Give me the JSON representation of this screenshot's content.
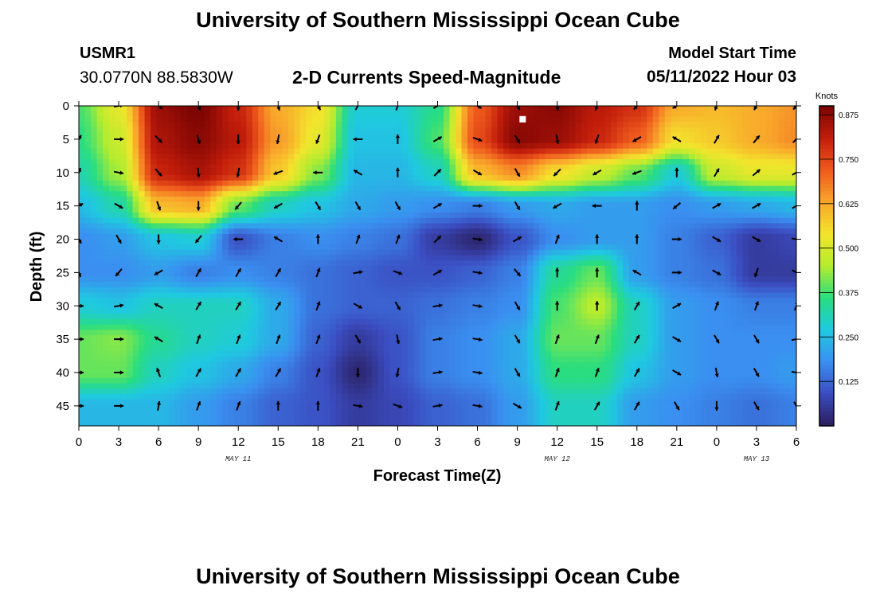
{
  "page": {
    "title": "University of Southern Mississippi Ocean Cube",
    "footer_title": "University of Southern Mississippi Ocean Cube",
    "station_id": "USMR1",
    "coordinates": "30.0770N  88.5830W",
    "subtitle": "2-D Currents Speed-Magnitude",
    "model_start_label": "Model Start Time",
    "model_start_value": "05/11/2022 Hour 03"
  },
  "chart_data": {
    "type": "heatmap",
    "xlabel": "Forecast Time(Z)",
    "ylabel": "Depth (ft)",
    "x_hours_range": [
      0,
      54
    ],
    "ylim": [
      0,
      48
    ],
    "y_inverted": true,
    "x_tick_labels": [
      "0",
      "3",
      "6",
      "9",
      "12",
      "15",
      "18",
      "21",
      "0",
      "3",
      "6",
      "9",
      "12",
      "15",
      "18",
      "21",
      "0",
      "3",
      "6"
    ],
    "y_ticks": [
      0,
      5,
      10,
      15,
      20,
      25,
      30,
      35,
      40,
      45
    ],
    "day_labels": [
      {
        "text": "MAY 11",
        "hour": 12
      },
      {
        "text": "MAY 12",
        "hour": 36
      },
      {
        "text": "MAY 13",
        "hour": 51
      }
    ],
    "colorbar": {
      "unit": "Knots",
      "range": [
        0,
        0.9
      ],
      "tick_values": [
        0.125,
        0.25,
        0.375,
        0.5,
        0.625,
        0.75,
        0.875
      ],
      "tick_labels": [
        "0.125",
        "0.250",
        "0.375",
        "0.500",
        "0.625",
        "0.750",
        "0.875"
      ],
      "palette": [
        "#2a1d5c",
        "#3b4cc0",
        "#3a8ff0",
        "#1fc9e0",
        "#29dd80",
        "#b4ec2e",
        "#f3e52c",
        "#f9a52b",
        "#ef5a1d",
        "#c21d0b",
        "#7a0403"
      ]
    },
    "speed_samples": {
      "hours": [
        0,
        3,
        6,
        9,
        12,
        15,
        18,
        21,
        24,
        27,
        30,
        33,
        36,
        39,
        42,
        45,
        48,
        51,
        54
      ],
      "depths": [
        0,
        5,
        10,
        15,
        20,
        25,
        30,
        35,
        40,
        45
      ],
      "knots": [
        [
          0.38,
          0.52,
          0.86,
          0.9,
          0.8,
          0.62,
          0.55,
          0.28,
          0.28,
          0.35,
          0.72,
          0.86,
          0.88,
          0.82,
          0.78,
          0.62,
          0.6,
          0.62,
          0.65
        ],
        [
          0.36,
          0.48,
          0.84,
          0.88,
          0.82,
          0.64,
          0.52,
          0.26,
          0.26,
          0.38,
          0.74,
          0.88,
          0.86,
          0.8,
          0.72,
          0.55,
          0.58,
          0.62,
          0.66
        ],
        [
          0.32,
          0.44,
          0.8,
          0.84,
          0.78,
          0.58,
          0.42,
          0.24,
          0.24,
          0.3,
          0.6,
          0.66,
          0.55,
          0.48,
          0.4,
          0.28,
          0.48,
          0.52,
          0.52
        ],
        [
          0.25,
          0.32,
          0.6,
          0.62,
          0.4,
          0.3,
          0.26,
          0.22,
          0.2,
          0.18,
          0.16,
          0.2,
          0.22,
          0.2,
          0.2,
          0.18,
          0.2,
          0.22,
          0.24
        ],
        [
          0.18,
          0.2,
          0.26,
          0.28,
          0.1,
          0.16,
          0.18,
          0.16,
          0.14,
          0.06,
          0.02,
          0.1,
          0.18,
          0.2,
          0.2,
          0.16,
          0.12,
          0.06,
          0.08
        ],
        [
          0.18,
          0.18,
          0.2,
          0.16,
          0.18,
          0.16,
          0.14,
          0.12,
          0.1,
          0.1,
          0.12,
          0.16,
          0.34,
          0.4,
          0.2,
          0.16,
          0.14,
          0.06,
          0.06
        ],
        [
          0.28,
          0.26,
          0.3,
          0.3,
          0.3,
          0.22,
          0.14,
          0.12,
          0.12,
          0.14,
          0.16,
          0.18,
          0.38,
          0.46,
          0.3,
          0.2,
          0.18,
          0.16,
          0.16
        ],
        [
          0.4,
          0.42,
          0.34,
          0.3,
          0.28,
          0.22,
          0.12,
          0.06,
          0.1,
          0.16,
          0.18,
          0.22,
          0.4,
          0.4,
          0.3,
          0.2,
          0.18,
          0.18,
          0.18
        ],
        [
          0.4,
          0.4,
          0.3,
          0.26,
          0.22,
          0.16,
          0.1,
          0.02,
          0.1,
          0.16,
          0.18,
          0.22,
          0.36,
          0.36,
          0.26,
          0.2,
          0.18,
          0.18,
          0.2
        ],
        [
          0.24,
          0.24,
          0.24,
          0.2,
          0.16,
          0.12,
          0.1,
          0.06,
          0.08,
          0.12,
          0.14,
          0.2,
          0.3,
          0.3,
          0.2,
          0.18,
          0.16,
          0.14,
          0.16
        ]
      ]
    },
    "vector_samples": {
      "hours": [
        0,
        3,
        6,
        9,
        12,
        15,
        18,
        21,
        24,
        27,
        30,
        33,
        36,
        39,
        42,
        45,
        48,
        51,
        54
      ],
      "depths": [
        0,
        5,
        10,
        15,
        20,
        25,
        30,
        35,
        40,
        45
      ],
      "direction_deg": [
        [
          null,
          80,
          130,
          160,
          180,
          165,
          150,
          30,
          20,
          60,
          120,
          150,
          170,
          200,
          220,
          240,
          200,
          210,
          220
        ],
        [
          30,
          90,
          135,
          165,
          180,
          190,
          200,
          270,
          0,
          60,
          110,
          150,
          170,
          200,
          240,
          300,
          30,
          40,
          45
        ],
        [
          20,
          100,
          140,
          175,
          190,
          250,
          270,
          300,
          0,
          45,
          120,
          150,
          225,
          240,
          250,
          0,
          30,
          50,
          60
        ],
        [
          60,
          120,
          160,
          180,
          220,
          240,
          150,
          150,
          150,
          60,
          90,
          150,
          240,
          270,
          0,
          230,
          60,
          60,
          60
        ],
        [
          150,
          150,
          180,
          220,
          270,
          300,
          0,
          20,
          20,
          45,
          100,
          60,
          20,
          0,
          0,
          90,
          120,
          120,
          100
        ],
        [
          160,
          220,
          240,
          30,
          30,
          30,
          20,
          80,
          110,
          60,
          100,
          140,
          0,
          0,
          300,
          90,
          120,
          200,
          120
        ],
        [
          90,
          80,
          300,
          30,
          30,
          30,
          20,
          120,
          150,
          80,
          100,
          150,
          0,
          0,
          30,
          60,
          20,
          20,
          20
        ],
        [
          90,
          90,
          300,
          20,
          20,
          20,
          20,
          150,
          170,
          80,
          100,
          150,
          20,
          20,
          30,
          120,
          150,
          150,
          80
        ],
        [
          90,
          90,
          340,
          30,
          30,
          30,
          20,
          180,
          190,
          80,
          100,
          150,
          20,
          20,
          30,
          120,
          170,
          150,
          100
        ],
        [
          90,
          90,
          10,
          20,
          20,
          0,
          0,
          100,
          110,
          80,
          100,
          120,
          20,
          30,
          30,
          150,
          180,
          150,
          150
        ]
      ]
    },
    "markers": [
      {
        "type": "square",
        "hour": 33.4,
        "depth": 2,
        "color": "#ffffff"
      }
    ]
  }
}
